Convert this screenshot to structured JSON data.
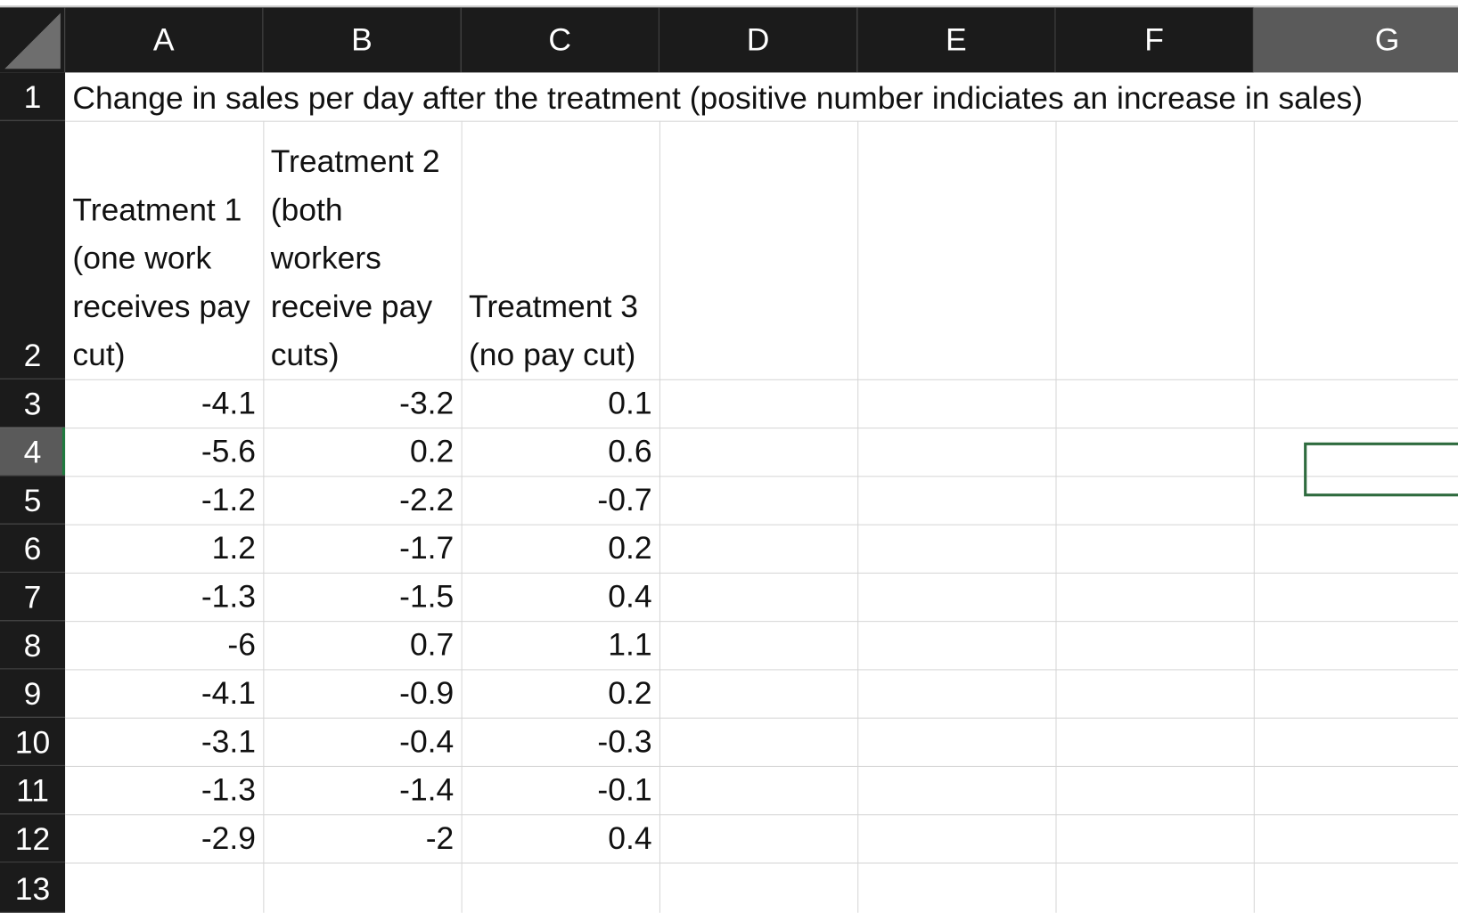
{
  "columns": [
    "A",
    "B",
    "C",
    "D",
    "E",
    "F",
    "G"
  ],
  "rows": [
    "1",
    "2",
    "3",
    "4",
    "5",
    "6",
    "7",
    "8",
    "9",
    "10",
    "11",
    "12",
    "13"
  ],
  "selected_column": "G",
  "selected_row": "4",
  "title_cell": "Change in sales per day  after the treatment (positive number indiciates an increase in sales)",
  "headers": [
    "Treatment 1 (one work receives pay cut)",
    "Treatment 2 (both workers receive pay cuts)",
    "Treatment 3 (no pay cut)"
  ],
  "data": [
    [
      "-4.1",
      "-3.2",
      "0.1"
    ],
    [
      "-5.6",
      "0.2",
      "0.6"
    ],
    [
      "-1.2",
      "-2.2",
      "-0.7"
    ],
    [
      "1.2",
      "-1.7",
      "0.2"
    ],
    [
      "-1.3",
      "-1.5",
      "0.4"
    ],
    [
      "-6",
      "0.7",
      "1.1"
    ],
    [
      "-4.1",
      "-0.9",
      "0.2"
    ],
    [
      "-3.1",
      "-0.4",
      "-0.3"
    ],
    [
      "-1.3",
      "-1.4",
      "-0.1"
    ],
    [
      "-2.9",
      "-2",
      "0.4"
    ]
  ],
  "colors": {
    "header_bg": "#1b1b1b",
    "header_selected_bg": "#5a5a5a",
    "selection_border": "#2e6b3e",
    "gridline": "#d6d6d6"
  }
}
